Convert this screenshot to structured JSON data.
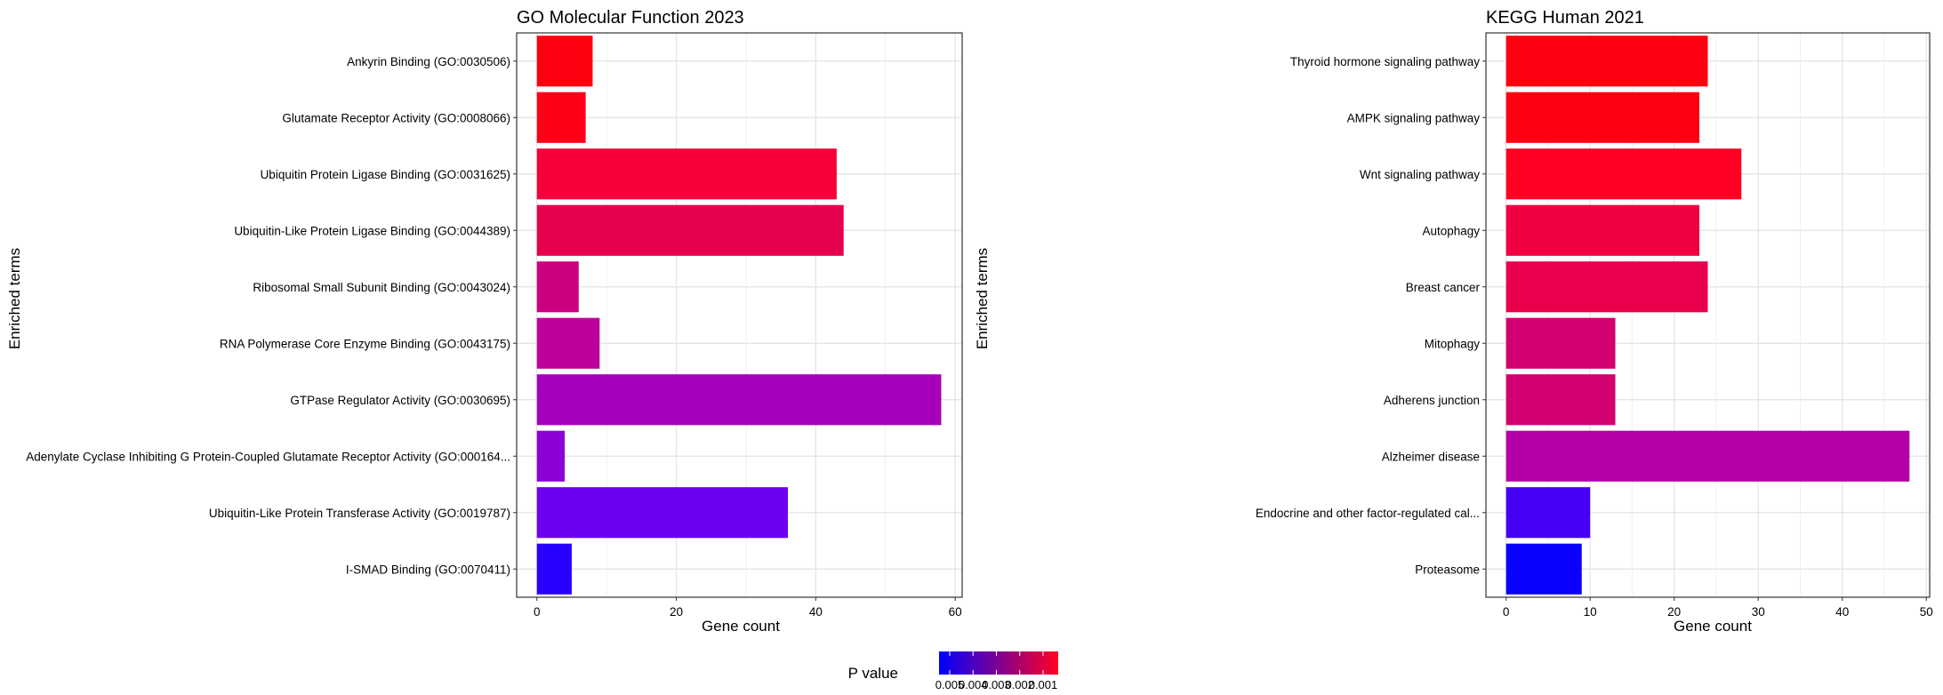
{
  "chart_data": [
    {
      "type": "bar",
      "orientation": "horizontal",
      "title": "GO Molecular Function 2023",
      "xlabel": "Gene count",
      "ylabel": "Enriched terms",
      "xlim": [
        -2.9,
        61
      ],
      "xticks": [
        "0",
        "20",
        "40",
        "60"
      ],
      "grid": true,
      "categories": [
        "Ankyrin Binding (GO:0030506)",
        "Glutamate Receptor Activity (GO:0008066)",
        "Ubiquitin Protein Ligase Binding (GO:0031625)",
        "Ubiquitin-Like Protein Ligase Binding (GO:0044389)",
        "Ribosomal Small Subunit Binding (GO:0043024)",
        "RNA Polymerase Core Enzyme Binding (GO:0043175)",
        "GTPase Regulator Activity (GO:0030695)",
        "Adenylate Cyclase Inhibiting G Protein-Coupled Glutamate Receptor Activity (GO:000164...",
        "Ubiquitin-Like Protein Transferase Activity (GO:0019787)",
        "I-SMAD Binding (GO:0070411)"
      ],
      "values": [
        8,
        7,
        43,
        44,
        6,
        9,
        58,
        4,
        36,
        5
      ],
      "colors": [
        "#FF0011",
        "#FF0019",
        "#F5003A",
        "#E7004E",
        "#CC007F",
        "#BD0099",
        "#A600BB",
        "#8C00D6",
        "#6A00EE",
        "#2800FF"
      ]
    },
    {
      "type": "bar",
      "orientation": "horizontal",
      "title": "KEGG Human 2021",
      "xlabel": "Gene count",
      "ylabel": "Enriched terms",
      "xlim": [
        -2.4,
        50.4
      ],
      "xticks": [
        "0",
        "10",
        "20",
        "30",
        "40",
        "50"
      ],
      "grid": true,
      "categories": [
        "Thyroid hormone signaling pathway",
        "AMPK signaling pathway",
        "Wnt signaling pathway",
        "Autophagy",
        "Breast cancer",
        "Mitophagy",
        "Adherens junction",
        "Alzheimer disease",
        "Endocrine and other factor-regulated cal...",
        "Proteasome"
      ],
      "values": [
        24,
        23,
        28,
        23,
        24,
        13,
        13,
        48,
        10,
        9
      ],
      "colors": [
        "#FF0011",
        "#FF0011",
        "#FF0022",
        "#F00040",
        "#E8004C",
        "#D20070",
        "#D20070",
        "#B400A8",
        "#4400F5",
        "#0A00FF"
      ]
    }
  ],
  "legend": {
    "title": "P value",
    "labels": [
      "0.005",
      "0.004",
      "0.003",
      "0.002",
      "0.001"
    ],
    "gradient": [
      "#0000FF",
      "#FF0022"
    ]
  }
}
